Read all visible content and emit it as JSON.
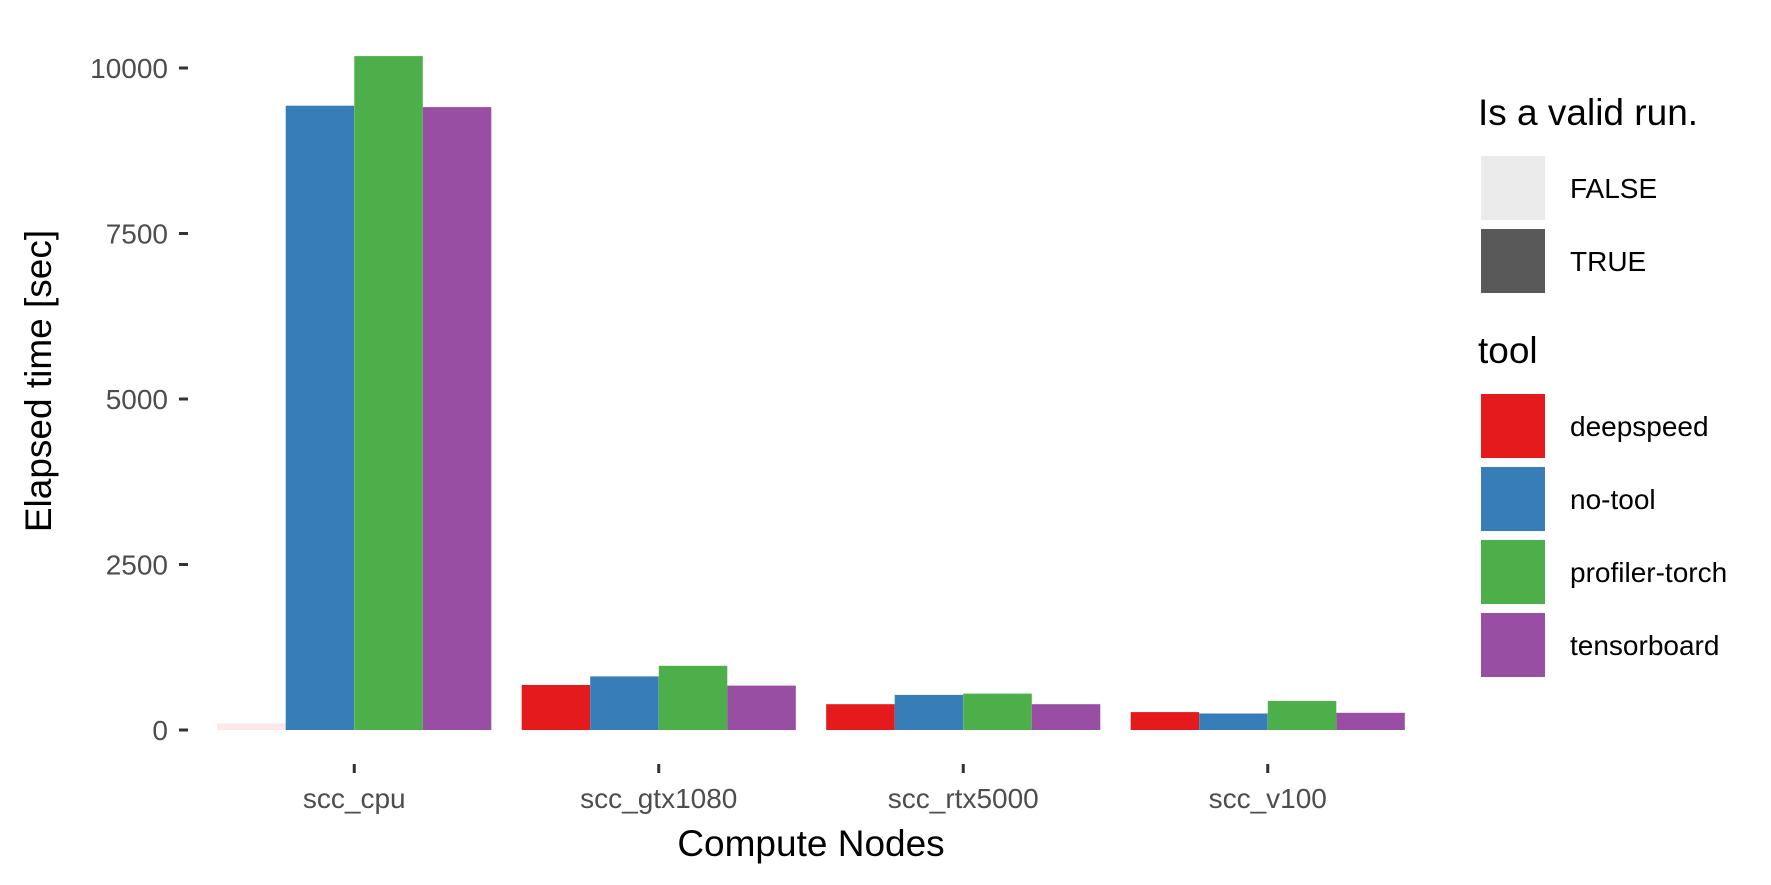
{
  "chart_data": {
    "type": "bar",
    "title": "",
    "xlabel": "Compute Nodes",
    "ylabel": "Elapsed time [sec]",
    "ylim": [
      -300,
      10300
    ],
    "yticks": [
      0,
      2500,
      5000,
      7500,
      10000
    ],
    "grid": false,
    "legend_position": "right",
    "categories": [
      "scc_cpu",
      "scc_gtx1080",
      "scc_rtx5000",
      "scc_v100"
    ],
    "series": [
      {
        "name": "deepspeed",
        "color": "#E41A1C",
        "values": [
          100,
          680,
          390,
          270
        ],
        "valid": [
          false,
          true,
          true,
          true
        ]
      },
      {
        "name": "no-tool",
        "color": "#377EB8",
        "values": [
          9430,
          810,
          530,
          250
        ],
        "valid": [
          true,
          true,
          true,
          true
        ]
      },
      {
        "name": "profiler-torch",
        "color": "#4DAF4A",
        "values": [
          10180,
          970,
          550,
          440
        ],
        "valid": [
          true,
          true,
          true,
          true
        ]
      },
      {
        "name": "tensorboard",
        "color": "#984EA3",
        "values": [
          9410,
          670,
          390,
          260
        ],
        "valid": [
          true,
          true,
          true,
          true
        ]
      }
    ],
    "legends": [
      {
        "title": "Is a valid run.",
        "items": [
          {
            "label": "FALSE",
            "color": "#EBEBEB"
          },
          {
            "label": "TRUE",
            "color": "#595959"
          }
        ]
      },
      {
        "title": "tool",
        "items": [
          {
            "label": "deepspeed",
            "color": "#E41A1C"
          },
          {
            "label": "no-tool",
            "color": "#377EB8"
          },
          {
            "label": "profiler-torch",
            "color": "#4DAF4A"
          },
          {
            "label": "tensorboard",
            "color": "#984EA3"
          }
        ]
      }
    ]
  }
}
